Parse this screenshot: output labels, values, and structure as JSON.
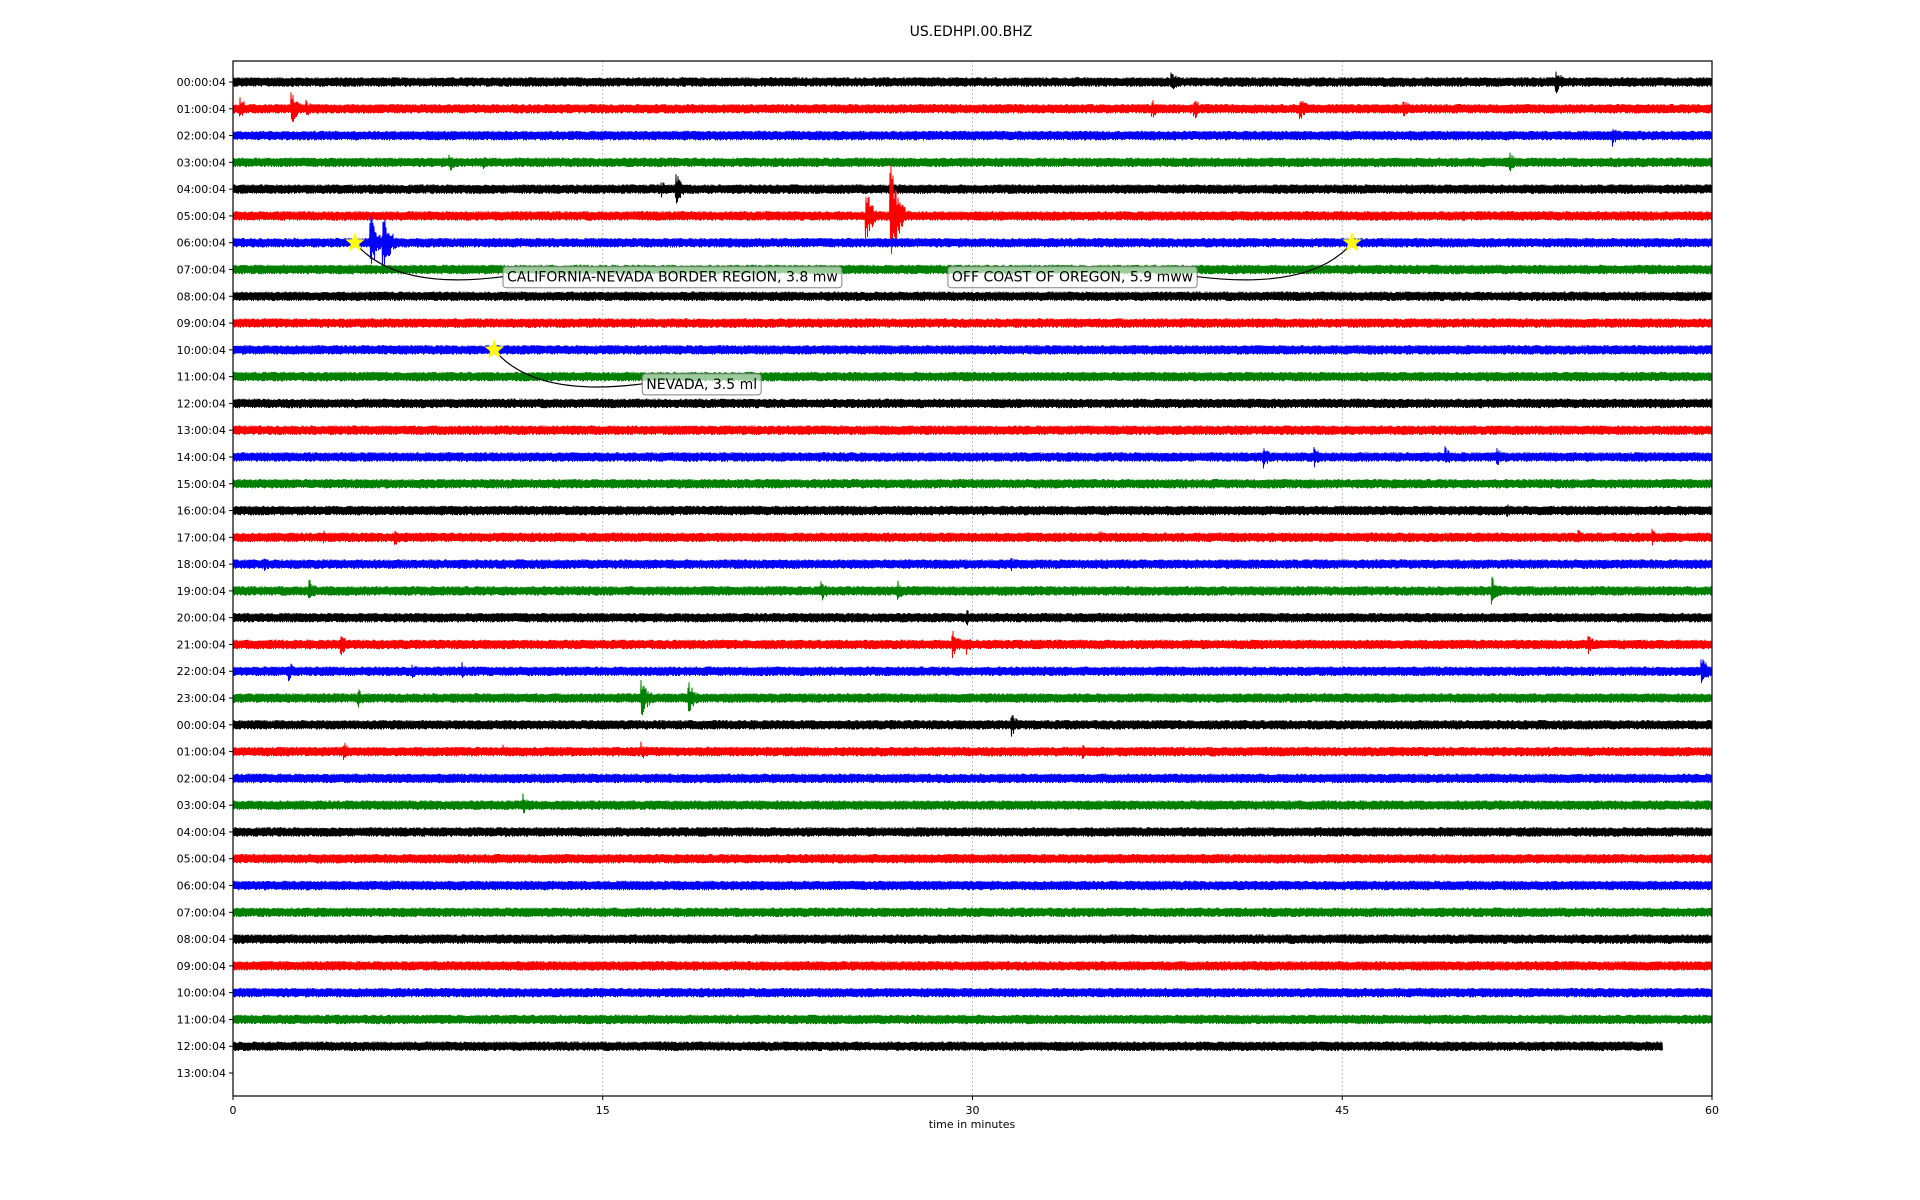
{
  "chart_data": {
    "type": "line",
    "title": "US.EDHPI.00.BHZ",
    "xlabel": "time in minutes",
    "ylabel": "",
    "xlim": [
      0,
      60
    ],
    "xticks": [
      "0",
      "15",
      "30",
      "45",
      "60"
    ],
    "xtick_values": [
      0,
      15,
      30,
      45,
      60
    ],
    "grid": "vertical",
    "row_labels": [
      "00:00:04",
      "01:00:04",
      "02:00:04",
      "03:00:04",
      "04:00:04",
      "05:00:04",
      "06:00:04",
      "07:00:04",
      "08:00:04",
      "09:00:04",
      "10:00:04",
      "11:00:04",
      "12:00:04",
      "13:00:04",
      "14:00:04",
      "15:00:04",
      "16:00:04",
      "17:00:04",
      "18:00:04",
      "19:00:04",
      "20:00:04",
      "21:00:04",
      "22:00:04",
      "23:00:04",
      "00:00:04",
      "01:00:04",
      "02:00:04",
      "03:00:04",
      "04:00:04",
      "05:00:04",
      "06:00:04",
      "07:00:04",
      "08:00:04",
      "09:00:04",
      "10:00:04",
      "11:00:04",
      "12:00:04",
      "13:00:04"
    ],
    "trace_colors": [
      "#000000",
      "#ff0000",
      "#0000ff",
      "#008000"
    ],
    "trace_count": 37,
    "last_trace_end_minute": 58,
    "events": [
      {
        "row": 0,
        "minute": 38.1,
        "amp": 12
      },
      {
        "row": 0,
        "minute": 53.7,
        "amp": 12
      },
      {
        "row": 0,
        "minute": 40.5,
        "amp": 5
      },
      {
        "row": 1,
        "minute": 0.3,
        "amp": 12
      },
      {
        "row": 1,
        "minute": 2.4,
        "amp": 16
      },
      {
        "row": 1,
        "minute": 3.0,
        "amp": 8
      },
      {
        "row": 1,
        "minute": 37.3,
        "amp": 10
      },
      {
        "row": 1,
        "minute": 39.0,
        "amp": 12
      },
      {
        "row": 1,
        "minute": 43.3,
        "amp": 12
      },
      {
        "row": 1,
        "minute": 47.5,
        "amp": 10
      },
      {
        "row": 2,
        "minute": 56.0,
        "amp": 10
      },
      {
        "row": 3,
        "minute": 8.8,
        "amp": 10
      },
      {
        "row": 3,
        "minute": 10.2,
        "amp": 6
      },
      {
        "row": 3,
        "minute": 51.8,
        "amp": 10
      },
      {
        "row": 4,
        "minute": 18.0,
        "amp": 16
      },
      {
        "row": 4,
        "minute": 17.4,
        "amp": 8
      },
      {
        "row": 5,
        "minute": 25.7,
        "amp": 26
      },
      {
        "row": 5,
        "minute": 26.7,
        "amp": 52
      },
      {
        "row": 6,
        "minute": 5.6,
        "amp": 28
      },
      {
        "row": 6,
        "minute": 6.1,
        "amp": 30
      },
      {
        "row": 6,
        "minute": 47.3,
        "amp": 7
      },
      {
        "row": 14,
        "minute": 41.8,
        "amp": 12
      },
      {
        "row": 14,
        "minute": 43.9,
        "amp": 10
      },
      {
        "row": 14,
        "minute": 49.2,
        "amp": 10
      },
      {
        "row": 14,
        "minute": 51.3,
        "amp": 9
      },
      {
        "row": 16,
        "minute": 51.7,
        "amp": 7
      },
      {
        "row": 17,
        "minute": 6.6,
        "amp": 9
      },
      {
        "row": 17,
        "minute": 3.7,
        "amp": 7
      },
      {
        "row": 17,
        "minute": 35.2,
        "amp": 7
      },
      {
        "row": 17,
        "minute": 54.6,
        "amp": 8
      },
      {
        "row": 17,
        "minute": 57.6,
        "amp": 8
      },
      {
        "row": 18,
        "minute": 1.3,
        "amp": 7
      },
      {
        "row": 18,
        "minute": 31.6,
        "amp": 7
      },
      {
        "row": 19,
        "minute": 3.1,
        "amp": 12
      },
      {
        "row": 19,
        "minute": 23.9,
        "amp": 10
      },
      {
        "row": 19,
        "minute": 27.0,
        "amp": 10
      },
      {
        "row": 19,
        "minute": 51.1,
        "amp": 14
      },
      {
        "row": 20,
        "minute": 29.8,
        "amp": 8
      },
      {
        "row": 21,
        "minute": 4.4,
        "amp": 12
      },
      {
        "row": 21,
        "minute": 29.2,
        "amp": 14
      },
      {
        "row": 21,
        "minute": 29.8,
        "amp": 9
      },
      {
        "row": 21,
        "minute": 55.0,
        "amp": 10
      },
      {
        "row": 22,
        "minute": 2.3,
        "amp": 9
      },
      {
        "row": 22,
        "minute": 7.3,
        "amp": 8
      },
      {
        "row": 22,
        "minute": 9.3,
        "amp": 9
      },
      {
        "row": 22,
        "minute": 59.6,
        "amp": 14
      },
      {
        "row": 23,
        "minute": 5.1,
        "amp": 10
      },
      {
        "row": 23,
        "minute": 16.6,
        "amp": 18
      },
      {
        "row": 23,
        "minute": 18.5,
        "amp": 16
      },
      {
        "row": 24,
        "minute": 31.6,
        "amp": 12
      },
      {
        "row": 24,
        "minute": 3.5,
        "amp": 5
      },
      {
        "row": 25,
        "minute": 4.5,
        "amp": 10
      },
      {
        "row": 25,
        "minute": 16.6,
        "amp": 9
      },
      {
        "row": 25,
        "minute": 34.5,
        "amp": 7
      },
      {
        "row": 25,
        "minute": 11.0,
        "amp": 6
      },
      {
        "row": 27,
        "minute": 11.8,
        "amp": 11
      }
    ],
    "annotations": [
      {
        "label": "CALIFORNIA-NEVADA BORDER REGION, 3.8 mw",
        "row": 6,
        "minute": 4.95
      },
      {
        "label": "OFF COAST OF OREGON, 5.9 mww",
        "row": 6,
        "minute": 45.4
      },
      {
        "label": "NEVADA, 3.5 ml",
        "row": 10,
        "minute": 10.6
      }
    ]
  }
}
